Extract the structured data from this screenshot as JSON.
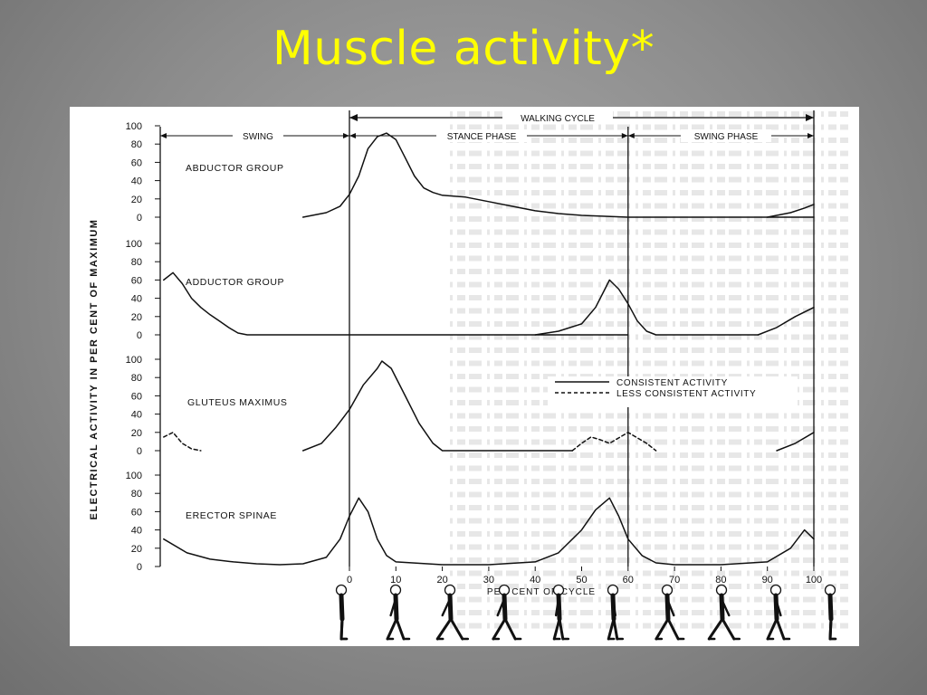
{
  "slide": {
    "title": "Muscle activity*",
    "title_color": "#ffff00",
    "figure_background": "#ffffff",
    "ink_color": "#111111"
  },
  "chart_data": {
    "type": "line",
    "header": {
      "cycle": "WALKING CYCLE",
      "phases": [
        "SWING",
        "STANCE PHASE",
        "SWING PHASE"
      ]
    },
    "ylabel": "ELECTRICAL ACTIVITY IN PER CENT OF MAXIMUM",
    "xlabel": "PER CENT OF CYCLE",
    "xlim": [
      -40,
      100
    ],
    "ylim": [
      0,
      100
    ],
    "x_ticks": [
      0,
      10,
      20,
      30,
      40,
      50,
      60,
      70,
      80,
      90,
      100
    ],
    "y_ticks": [
      0,
      20,
      40,
      60,
      80,
      100
    ],
    "toe_off_percent": 60,
    "legend": {
      "position": "right of GLUTEUS MAXIMUS panel",
      "entries": [
        {
          "label": "CONSISTENT ACTIVITY",
          "style": "solid"
        },
        {
          "label": "LESS CONSISTENT ACTIVITY",
          "style": "dashed"
        }
      ]
    },
    "panels": [
      {
        "label": "ABDUCTOR GROUP",
        "series": [
          {
            "style": "solid",
            "points": [
              [
                -10,
                0
              ],
              [
                -5,
                5
              ],
              [
                -2,
                12
              ],
              [
                0,
                25
              ],
              [
                2,
                45
              ],
              [
                4,
                75
              ],
              [
                6,
                88
              ],
              [
                8,
                92
              ],
              [
                10,
                85
              ],
              [
                12,
                65
              ],
              [
                14,
                45
              ],
              [
                16,
                32
              ],
              [
                18,
                27
              ],
              [
                20,
                24
              ],
              [
                25,
                22
              ],
              [
                30,
                17
              ],
              [
                35,
                12
              ],
              [
                40,
                7
              ],
              [
                45,
                4
              ],
              [
                50,
                2
              ],
              [
                55,
                1
              ],
              [
                60,
                0
              ],
              [
                100,
                0
              ]
            ]
          },
          {
            "style": "solid",
            "points": [
              [
                90,
                0
              ],
              [
                95,
                5
              ],
              [
                98,
                10
              ],
              [
                100,
                14
              ]
            ]
          }
        ]
      },
      {
        "label": "ADDUCTOR GROUP",
        "series": [
          {
            "style": "solid",
            "points": [
              [
                -40,
                60
              ],
              [
                -38,
                68
              ],
              [
                -36,
                56
              ],
              [
                -34,
                40
              ],
              [
                -32,
                30
              ],
              [
                -30,
                22
              ],
              [
                -28,
                15
              ],
              [
                -26,
                8
              ],
              [
                -24,
                2
              ],
              [
                -22,
                0
              ],
              [
                60,
                0
              ]
            ]
          },
          {
            "style": "solid",
            "points": [
              [
                40,
                0
              ],
              [
                45,
                4
              ],
              [
                50,
                12
              ],
              [
                53,
                30
              ],
              [
                55,
                50
              ],
              [
                56,
                60
              ],
              [
                58,
                50
              ],
              [
                60,
                34
              ],
              [
                62,
                15
              ],
              [
                64,
                4
              ],
              [
                66,
                0
              ],
              [
                88,
                0
              ]
            ]
          },
          {
            "style": "solid",
            "points": [
              [
                88,
                0
              ],
              [
                92,
                8
              ],
              [
                96,
                20
              ],
              [
                100,
                30
              ]
            ]
          }
        ]
      },
      {
        "label": "GLUTEUS MAXIMUS",
        "series": [
          {
            "style": "dashed",
            "points": [
              [
                -40,
                15
              ],
              [
                -38,
                20
              ],
              [
                -36,
                8
              ],
              [
                -34,
                2
              ],
              [
                -32,
                0
              ]
            ]
          },
          {
            "style": "solid",
            "points": [
              [
                -10,
                0
              ],
              [
                -6,
                8
              ],
              [
                -3,
                25
              ],
              [
                0,
                45
              ],
              [
                3,
                72
              ],
              [
                6,
                90
              ],
              [
                7,
                98
              ],
              [
                9,
                90
              ],
              [
                12,
                60
              ],
              [
                15,
                30
              ],
              [
                18,
                8
              ],
              [
                20,
                0
              ],
              [
                48,
                0
              ]
            ]
          },
          {
            "style": "dashed",
            "points": [
              [
                48,
                0
              ],
              [
                50,
                8
              ],
              [
                52,
                15
              ],
              [
                54,
                12
              ],
              [
                56,
                8
              ],
              [
                58,
                14
              ],
              [
                60,
                20
              ],
              [
                62,
                14
              ],
              [
                64,
                8
              ],
              [
                66,
                0
              ]
            ]
          },
          {
            "style": "solid",
            "points": [
              [
                92,
                0
              ],
              [
                96,
                8
              ],
              [
                100,
                20
              ]
            ]
          }
        ]
      },
      {
        "label": "ERECTOR SPINAE",
        "series": [
          {
            "style": "solid",
            "points": [
              [
                -40,
                30
              ],
              [
                -35,
                15
              ],
              [
                -30,
                8
              ],
              [
                -25,
                5
              ],
              [
                -20,
                3
              ],
              [
                -15,
                2
              ],
              [
                -10,
                3
              ],
              [
                -5,
                10
              ],
              [
                -2,
                30
              ],
              [
                0,
                55
              ],
              [
                2,
                75
              ],
              [
                4,
                60
              ],
              [
                6,
                30
              ],
              [
                8,
                12
              ],
              [
                10,
                5
              ],
              [
                20,
                2
              ],
              [
                30,
                2
              ],
              [
                40,
                5
              ],
              [
                45,
                15
              ],
              [
                50,
                40
              ],
              [
                53,
                62
              ],
              [
                56,
                75
              ],
              [
                58,
                55
              ],
              [
                60,
                30
              ],
              [
                63,
                12
              ],
              [
                66,
                4
              ],
              [
                70,
                2
              ],
              [
                80,
                2
              ],
              [
                90,
                5
              ],
              [
                95,
                20
              ],
              [
                98,
                40
              ],
              [
                100,
                30
              ]
            ]
          }
        ]
      }
    ],
    "walking_figures": 10
  }
}
